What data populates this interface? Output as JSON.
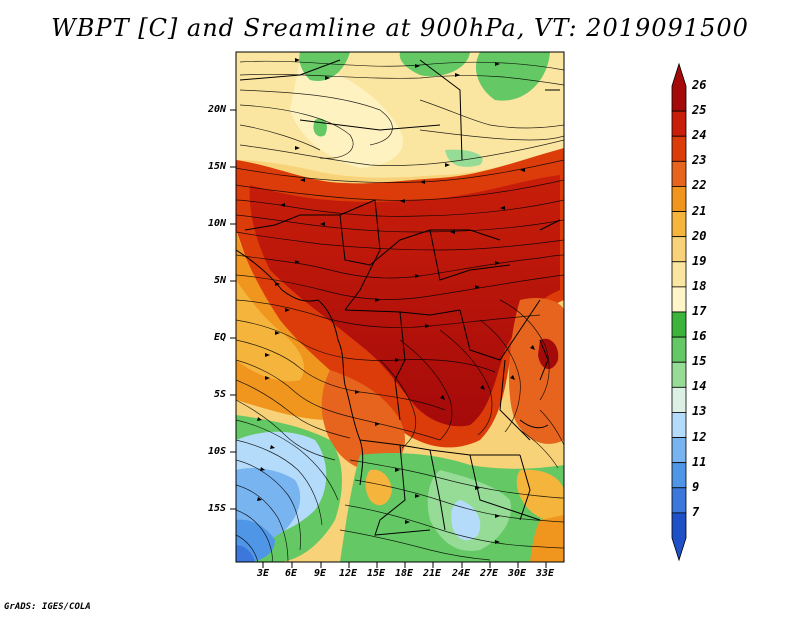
{
  "title": "WBPT [C] and Sreamline at 900hPa, VT: 2019091500",
  "credit": "GrADS: IGES/COLA",
  "map": {
    "variable": "Wet-bulb potential temperature (C)",
    "overlay": "Streamlines",
    "level": "900hPa",
    "valid_time": "2019091500",
    "lat_labels": [
      "20N",
      "15N",
      "10N",
      "5N",
      "EQ",
      "5S",
      "10S",
      "15S"
    ],
    "lon_labels": [
      "3E",
      "6E",
      "9E",
      "12E",
      "15E",
      "18E",
      "21E",
      "24E",
      "27E",
      "30E",
      "33E"
    ]
  },
  "colorbar": {
    "labels": [
      "26",
      "25",
      "24",
      "23",
      "22",
      "21",
      "20",
      "19",
      "18",
      "17",
      "16",
      "15",
      "14",
      "13",
      "12",
      "11",
      "9",
      "7"
    ],
    "colors": [
      "#a50a0a",
      "#c81e0a",
      "#dc3c0a",
      "#e6641e",
      "#f0961e",
      "#f5b43c",
      "#f8d278",
      "#fae6a0",
      "#fff5c8",
      "#3cb43c",
      "#64c864",
      "#96dc96",
      "#dcf0e6",
      "#b4dcfa",
      "#78b4f0",
      "#5096e6",
      "#3c78dc",
      "#1e50c8"
    ]
  }
}
